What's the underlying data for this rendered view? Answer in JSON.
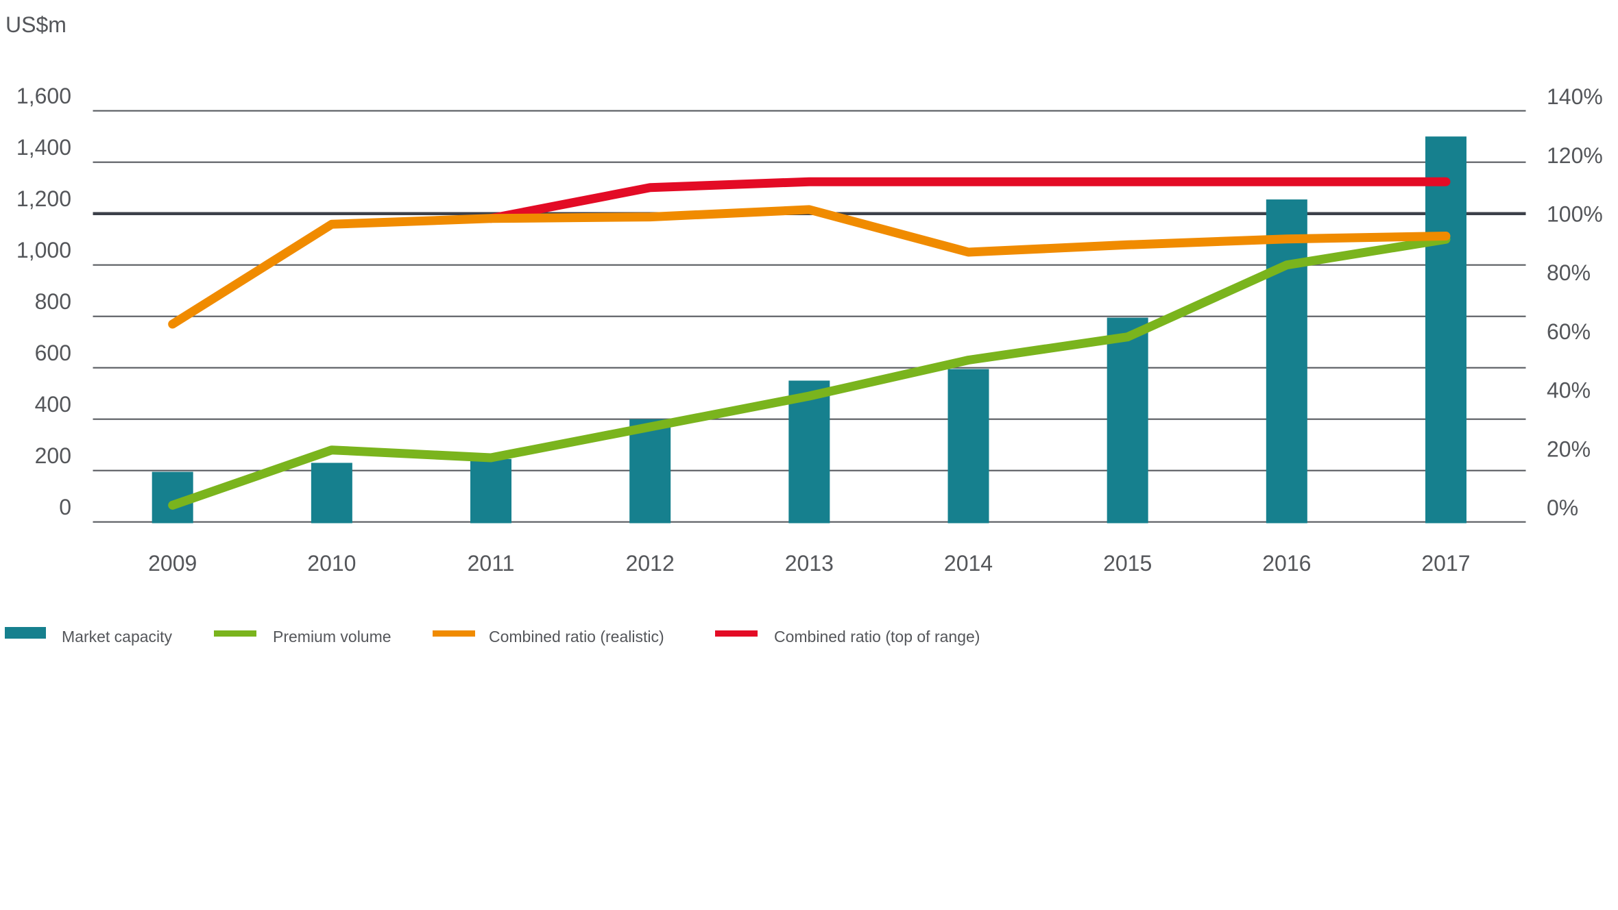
{
  "chart_data": {
    "type": "bar+line combo",
    "title_unit": "US$m",
    "categories": [
      "2009",
      "2010",
      "2011",
      "2012",
      "2013",
      "2014",
      "2015",
      "2016",
      "2017"
    ],
    "series": [
      {
        "name": "Market capacity",
        "type": "bar",
        "axis": "left",
        "color": "#16808e",
        "values": [
          195,
          230,
          245,
          400,
          550,
          595,
          795,
          1255,
          1500
        ]
      },
      {
        "name": "Premium volume",
        "type": "line",
        "axis": "left",
        "color": "#7ab41d",
        "values": [
          65,
          280,
          250,
          370,
          490,
          630,
          720,
          1000,
          1100
        ]
      },
      {
        "name": "Combined ratio (realistic)",
        "type": "line",
        "axis": "right",
        "color": "#f08b00",
        "values": [
          62.5,
          96.5,
          98.5,
          99,
          101.5,
          87,
          89.5,
          91.5,
          92.5
        ]
      },
      {
        "name": "Combined ratio (top of range)",
        "type": "line",
        "axis": "right",
        "color": "#e30b25",
        "values": [
          null,
          null,
          98.5,
          109,
          111,
          111,
          111,
          111,
          111
        ]
      }
    ],
    "left_axis": {
      "label": "US$m",
      "min": 0,
      "max": 1600,
      "step": 200,
      "tick_labels": [
        "1,600",
        "1,400",
        "1,200",
        "1,000",
        "800",
        "600",
        "400",
        "200",
        "0"
      ]
    },
    "right_axis": {
      "unit": "%",
      "min": 0,
      "max": 140,
      "step": 20,
      "tick_labels": [
        "140%",
        "120%",
        "100%",
        "80%",
        "60%",
        "40%",
        "20%",
        "0%"
      ]
    },
    "emphasized_gridline_left_value": 1200,
    "grid": true,
    "legend_position": "bottom-left",
    "colors": {
      "grid_line": "#585b60",
      "emphasized_grid_line": "#3c4049",
      "axis_text": "#54565a"
    }
  },
  "legend": {
    "items": [
      {
        "label": "Market capacity",
        "color": "#16808e",
        "swatch": "bar-swatch"
      },
      {
        "label": "Premium volume",
        "color": "#7ab41d",
        "swatch": "line-swatch"
      },
      {
        "label": "Combined ratio (realistic)",
        "color": "#f08b00",
        "swatch": "line-swatch"
      },
      {
        "label": "Combined ratio (top of range)",
        "color": "#e30b25",
        "swatch": "line-swatch"
      }
    ]
  }
}
